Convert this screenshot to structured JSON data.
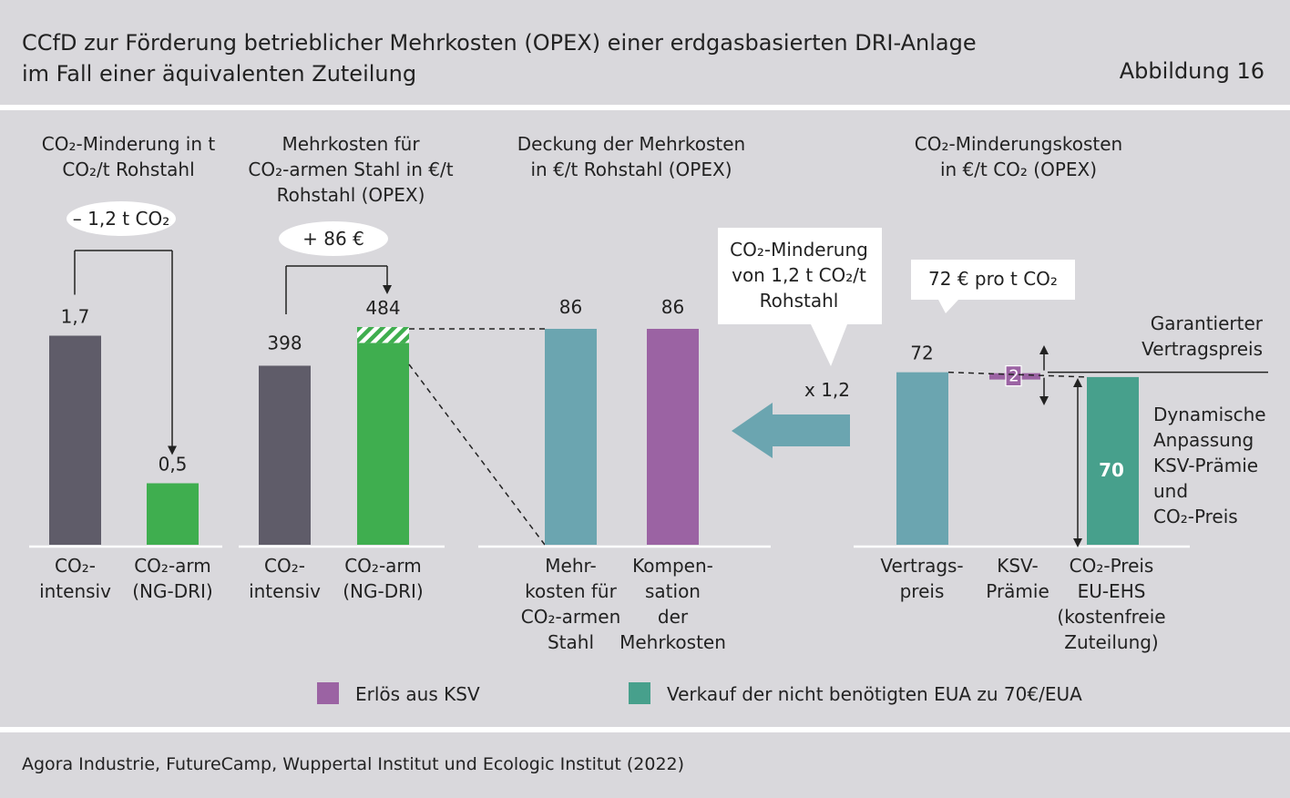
{
  "header": {
    "title": "CCfD zur Förderung betrieblicher Mehrkosten (OPEX) einer erdgasbasierten DRI-Anlage\nim Fall einer äquivalenten Zuteilung",
    "figure_label": "Abbildung 16"
  },
  "footer": {
    "source": "Agora Industrie, FutureCamp, Wuppertal Institut und Ecologic Institut (2022)"
  },
  "colors": {
    "grey": "#5f5c69",
    "green": "#3fae4f",
    "teal": "#6ba5b0",
    "purple": "#9b63a3",
    "eua_green": "#47a08c",
    "background": "#d9d8dc"
  },
  "chart_data": [
    {
      "type": "bar",
      "title": "CO₂-Minderung in t\nCO₂/t Rohstahl",
      "categories": [
        "CO₂-\nintensiv",
        "CO₂-arm\n(NG-DRI)"
      ],
      "values": [
        1.7,
        0.5
      ],
      "value_labels": [
        "1,7",
        "0,5"
      ],
      "annotation": "– 1,2 t CO₂"
    },
    {
      "type": "bar",
      "title": "Mehrkosten für\nCO₂-armen Stahl in €/t\nRohstahl (OPEX)",
      "categories": [
        "CO₂-\nintensiv",
        "CO₂-arm\n(NG-DRI)"
      ],
      "values": [
        398,
        484
      ],
      "value_labels": [
        "398",
        "484"
      ],
      "annotation": "+ 86 €"
    },
    {
      "type": "bar",
      "title": "Deckung der Mehrkosten\nin €/t Rohstahl (OPEX)",
      "categories": [
        "Mehr-\nkosten für\nCO₂-armen\nStahl",
        "Kompen-\nsation\nder\nMehrkosten"
      ],
      "values": [
        86,
        86
      ],
      "value_labels": [
        "86",
        "86"
      ]
    },
    {
      "type": "bar",
      "title": "CO₂-Minderungskosten\nin €/t CO₂ (OPEX)",
      "categories": [
        "Vertrags-\npreis",
        "KSV-\nPrämie",
        "CO₂-Preis\nEU-EHS\n(kostenfreie\nZuteilung)"
      ],
      "values": [
        72,
        2,
        70
      ],
      "value_labels": [
        "72",
        "2",
        "70"
      ],
      "annotations": [
        "72 € pro t CO₂",
        "Garantierter\nVertragspreis",
        "Dynamische\nAnpassung\nKSV-Prämie\nund\nCO₂-Preis"
      ]
    }
  ],
  "middle": {
    "callout": "CO₂-Minderung\nvon 1,2 t CO₂/t\nRohstahl",
    "multiplier": "x 1,2"
  },
  "legend": [
    {
      "label": "Erlös aus KSV",
      "color": "#9b63a3"
    },
    {
      "label": "Verkauf der nicht benötigten EUA zu 70€/EUA",
      "color": "#47a08c"
    }
  ]
}
